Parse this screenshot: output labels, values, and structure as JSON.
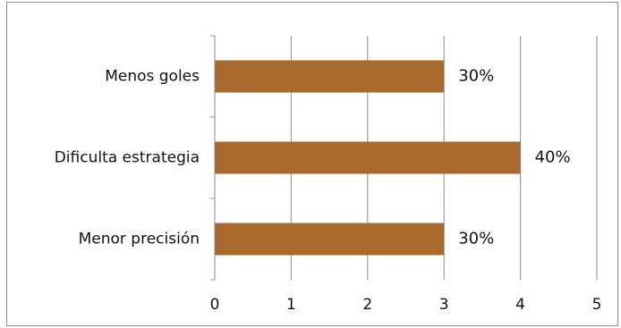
{
  "chart_data": {
    "type": "bar",
    "orientation": "horizontal",
    "categories": [
      "Menos goles",
      "Dificulta estrategia",
      "Menor precisión"
    ],
    "values": [
      3,
      4,
      3
    ],
    "data_labels": [
      "30%",
      "40%",
      "30%"
    ],
    "xlim": [
      0,
      5
    ],
    "x_ticks": [
      "0",
      "1",
      "2",
      "3",
      "4",
      "5"
    ],
    "grid": true,
    "legend": "none",
    "bar_color": "#a86b2d",
    "title": "",
    "xlabel": "",
    "ylabel": ""
  }
}
